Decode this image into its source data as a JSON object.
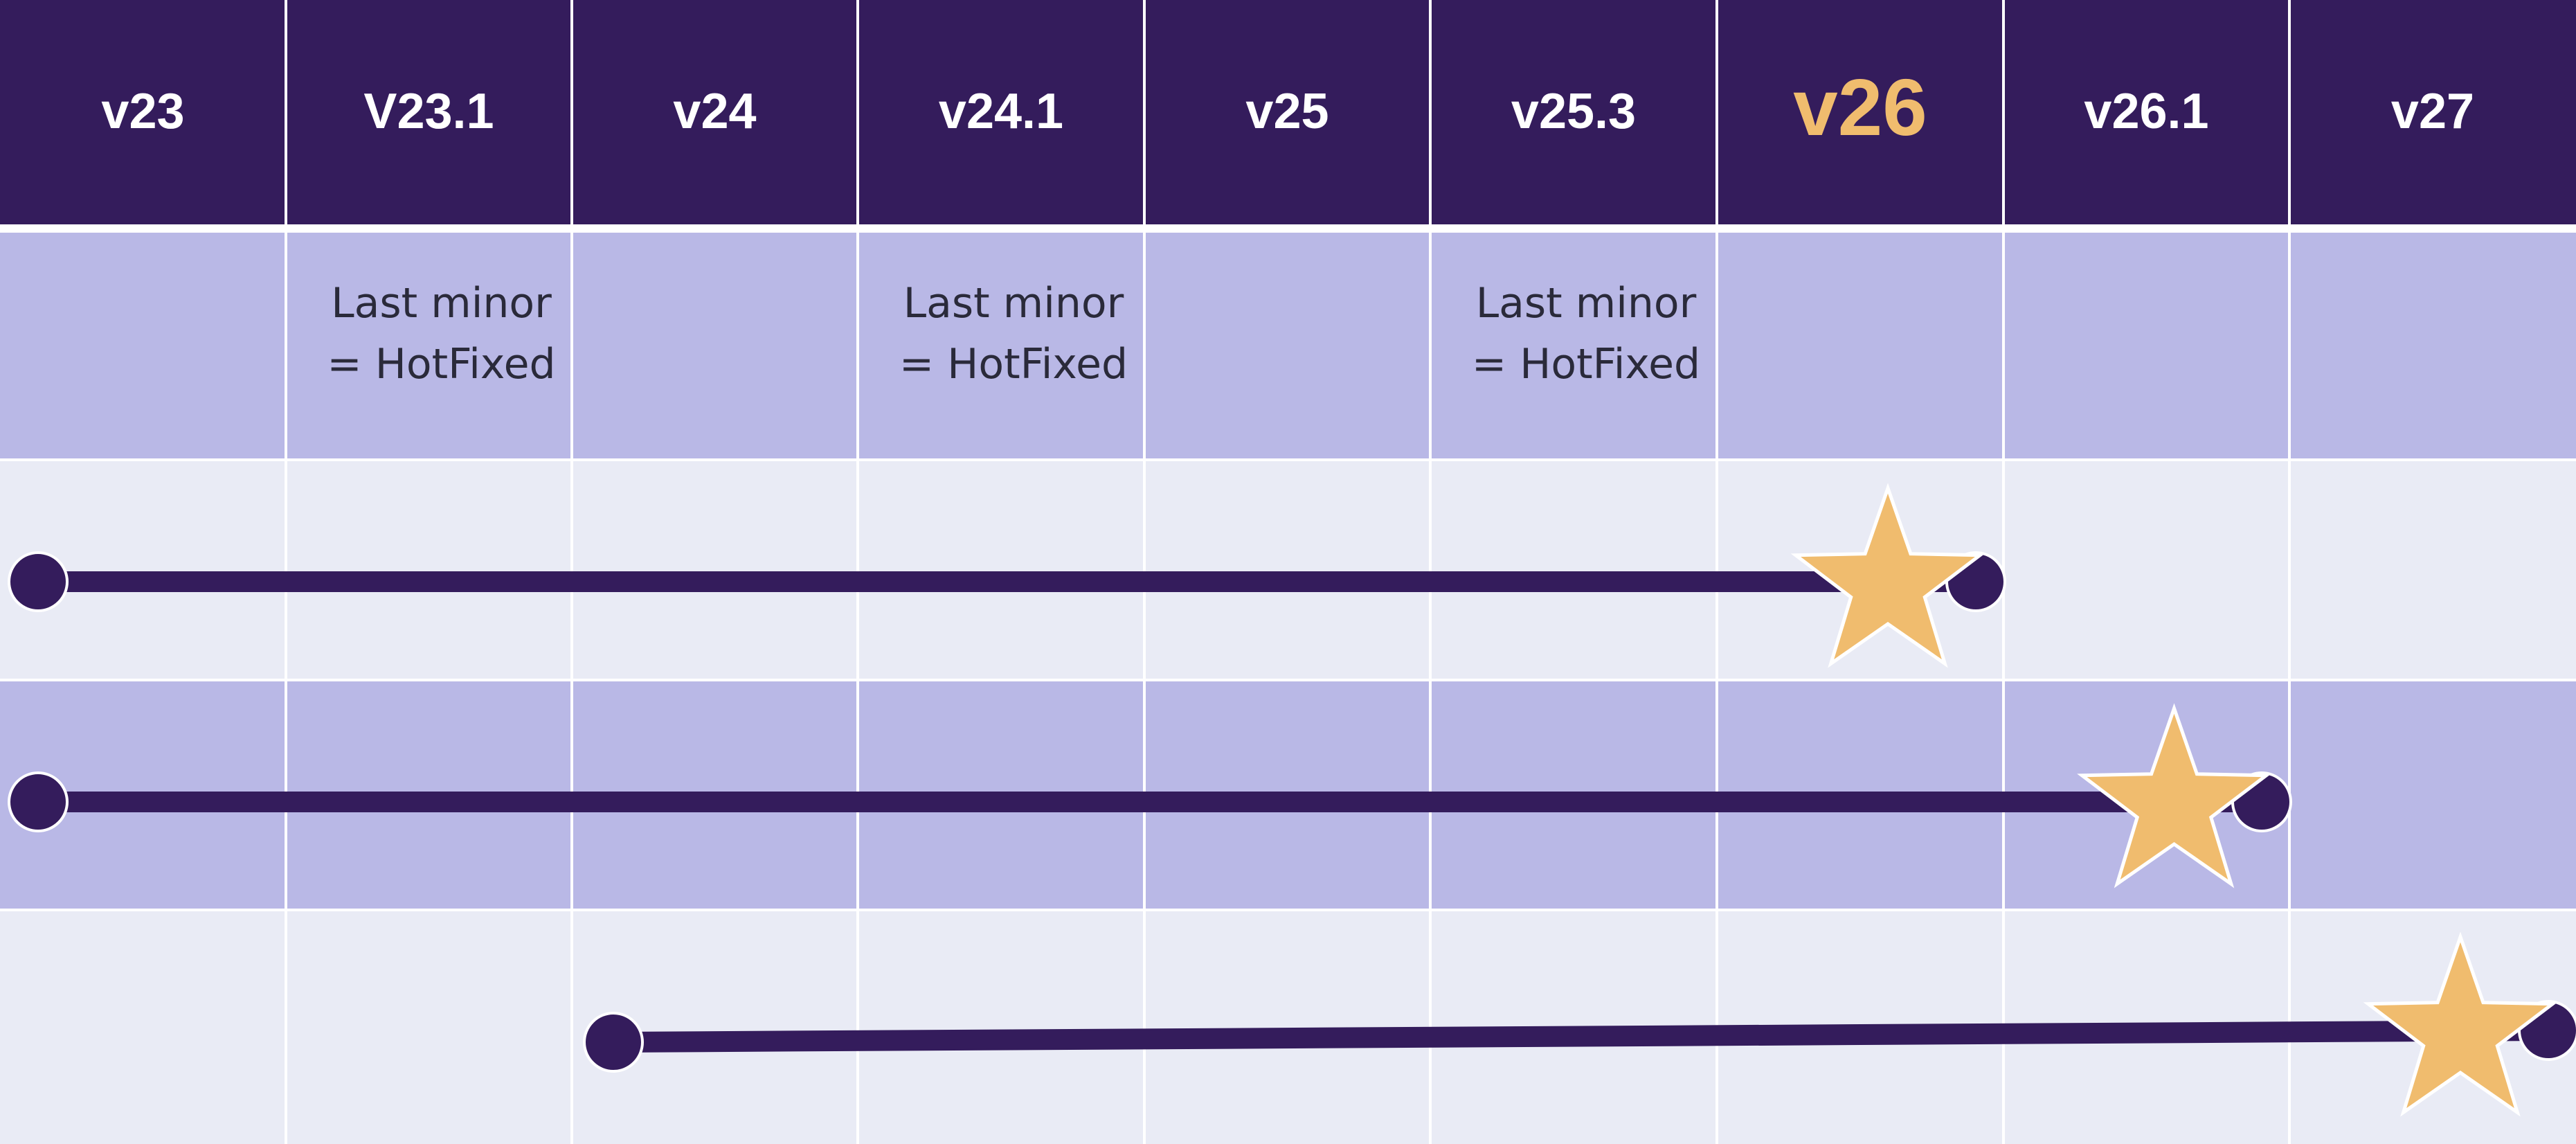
{
  "versions": [
    "v23",
    "V23.1",
    "v24",
    "v24.1",
    "v25",
    "v25.3",
    "v26",
    "v26.1",
    "v27"
  ],
  "highlighted_version": "v26",
  "notes": [
    {
      "column": 1,
      "line1": "Last minor",
      "line2": "= HotFixed"
    },
    {
      "column": 3,
      "line1": "Last minor",
      "line2": "= HotFixed"
    },
    {
      "column": 5,
      "line1": "Last minor",
      "line2": "= HotFixed"
    }
  ],
  "timelines": [
    {
      "start_version": "v23",
      "end_version": "v26",
      "star_version": "v26"
    },
    {
      "start_version": "v23",
      "end_version": "v26.1",
      "star_version": "v26.1"
    },
    {
      "start_version": "v24",
      "end_version": "v27",
      "star_version": "v27"
    }
  ],
  "colors": {
    "header_bg": "#341c5c",
    "header_text": "#ffffff",
    "highlight_text": "#f0bc6e",
    "row_dark": "#b9b8e6",
    "row_light": "#e9ebf5",
    "grid_line": "#ffffff",
    "timeline": "#341c5c",
    "star": "#f0bc6e",
    "star_outline": "#ffffff",
    "note_text": "#2a2a3a"
  }
}
